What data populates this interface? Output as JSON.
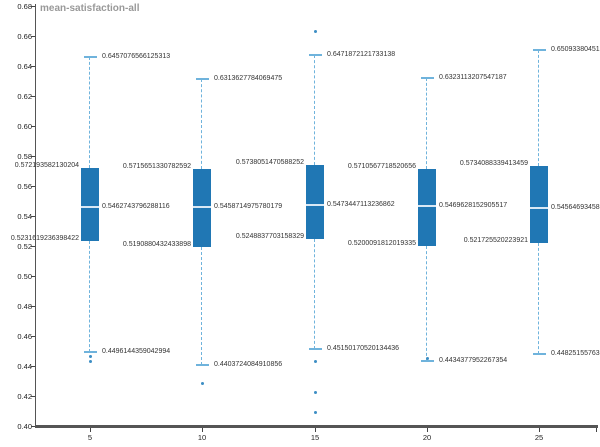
{
  "chart_data": {
    "type": "boxplot",
    "title": "mean-satisfaction-all",
    "x_tick_labels": [
      "5",
      "10",
      "15",
      "20",
      "25"
    ],
    "y_tick_labels": [
      "0.40",
      "0.42",
      "0.44",
      "0.46",
      "0.48",
      "0.50",
      "0.52",
      "0.54",
      "0.56",
      "0.58",
      "0.60",
      "0.62",
      "0.64",
      "0.66",
      "0.68"
    ],
    "ylim": [
      0.4,
      0.68
    ],
    "grid": false,
    "legend": "none",
    "boxes": [
      {
        "category": "5",
        "whisker_low": 0.4496144359042994,
        "q1": 0.5231619236398422,
        "median": 0.5462743796288116,
        "q3": 0.572193582130204,
        "whisker_high": 0.6457076566125313,
        "outliers": [
          0.4462,
          0.4428
        ],
        "labels": {
          "whisker_low": "0.4496144359042994",
          "q1": "0.5231619236398422",
          "median": "0.5462743796288116",
          "q3": "0.572193582130204",
          "whisker_high": "0.6457076566125313"
        }
      },
      {
        "category": "10",
        "whisker_low": 0.4403724084910856,
        "q1": 0.5190880432433898,
        "median": 0.5458714975780179,
        "q3": 0.5715651330782592,
        "whisker_high": 0.6313627784069475,
        "outliers": [
          0.4285
        ],
        "labels": {
          "whisker_low": "0.4403724084910856",
          "q1": "0.5190880432433898",
          "median": "0.5458714975780179",
          "q3": "0.5715651330782592",
          "whisker_high": "0.6313627784069475"
        }
      },
      {
        "category": "15",
        "whisker_low": 0.45150170520134436,
        "q1": 0.5248837703158329,
        "median": 0.5473447113236862,
        "q3": 0.5738051470588252,
        "whisker_high": 0.6471872121733138,
        "outliers": [
          0.6627,
          0.4433,
          0.4222,
          0.409
        ],
        "labels": {
          "whisker_low": "0.45150170520134436",
          "q1": "0.5248837703158329",
          "median": "0.5473447113236862",
          "q3": "0.5738051470588252",
          "whisker_high": "0.6471872121733138"
        }
      },
      {
        "category": "20",
        "whisker_low": 0.4434377952267354,
        "q1": 0.5200091812019335,
        "median": 0.5469628152905517,
        "q3": 0.5710567718520656,
        "whisker_high": 0.6323113207547187,
        "outliers": [
          0.4447
        ],
        "labels": {
          "whisker_low": "0.4434377952267354",
          "q1": "0.5200091812019335",
          "median": "0.5469628152905517",
          "q3": "0.5710567718520656",
          "whisker_high": "0.6323113207547187"
        }
      },
      {
        "category": "25",
        "whisker_low": 0.44825155763,
        "q1": 0.521725520223921,
        "median": 0.54564693458,
        "q3": 0.5734088339413459,
        "whisker_high": 0.65093380451,
        "outliers": [],
        "labels": {
          "whisker_low": "0.44825155763",
          "q1": "0.521725520223921",
          "median": "0.54564693458",
          "q3": "0.5734088339413459",
          "whisker_high": "0.65093380451"
        }
      }
    ],
    "colors": {
      "box_fill": "#2077b4",
      "median_line": "#d9e8f5",
      "whisker": "#6fb3dc",
      "outlier": "#3d8ec4",
      "axis": "#555555",
      "tick_text": "#222222",
      "annotation_text": "#333333",
      "title_text": "#999999"
    }
  }
}
